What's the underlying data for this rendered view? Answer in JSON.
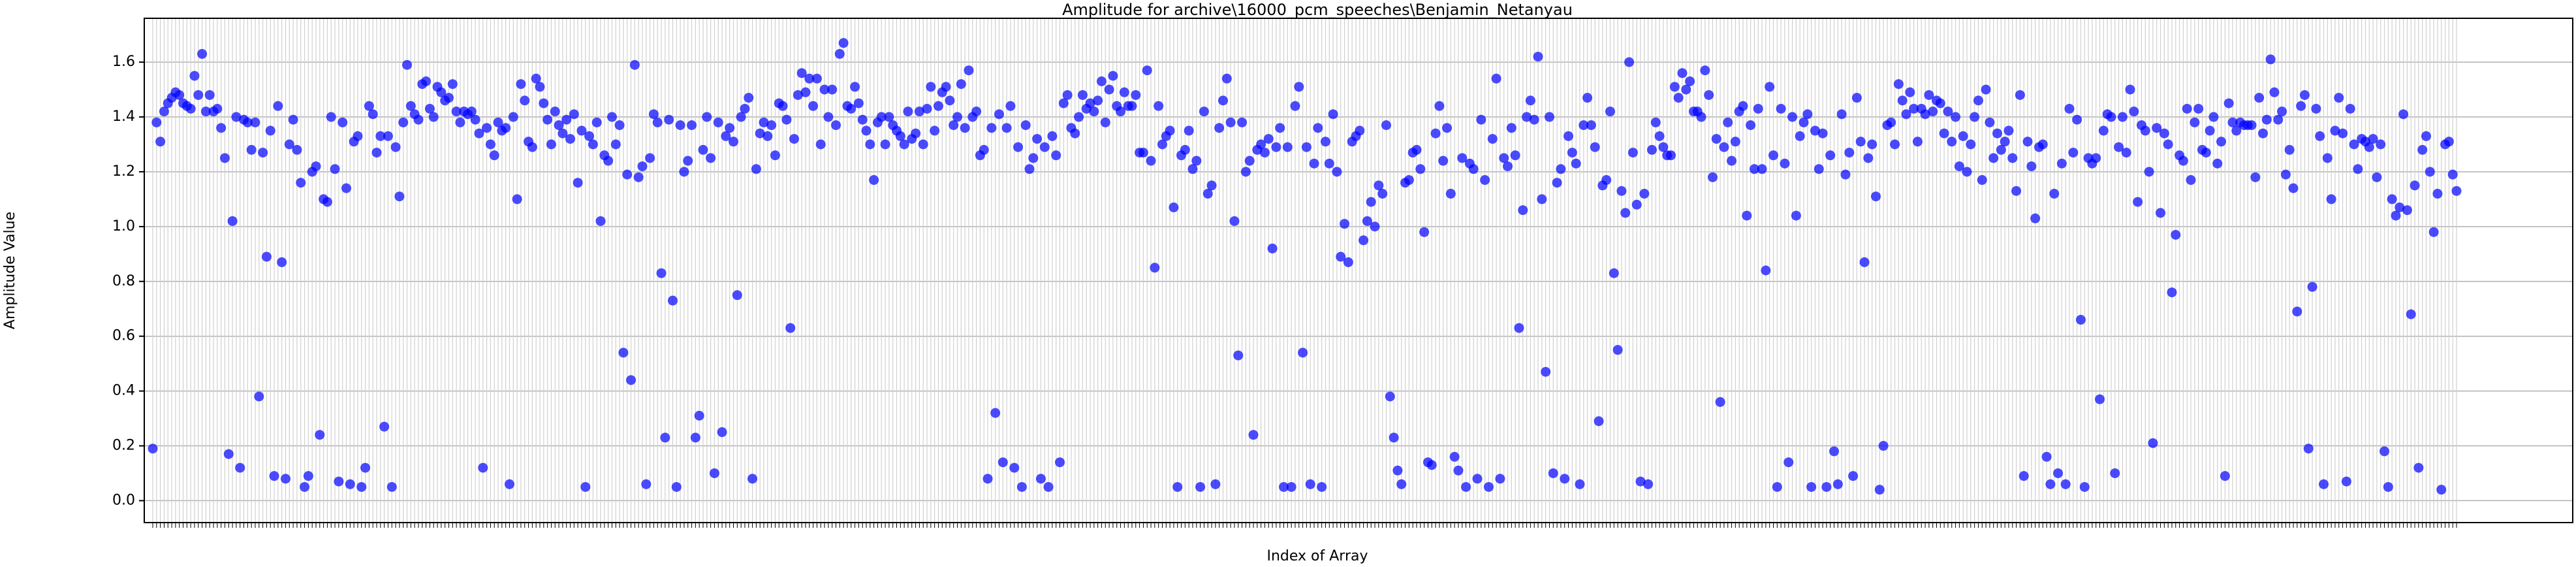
{
  "chart_data": {
    "type": "scatter",
    "title": "Amplitude for archive\\16000_pcm_speeches\\Benjamin_Netanyau",
    "x_label": "Index of Array",
    "y_label": "Amplitude Value",
    "color": "#0000ff",
    "opacity": 0.7,
    "grid": true,
    "ylim": [
      -0.08,
      1.76
    ],
    "yticks": [
      {
        "value": 0,
        "label": "0.0"
      },
      0.2,
      0.4,
      0.6,
      0.8,
      {
        "value": 1,
        "label": "1.0"
      },
      1.2,
      1.4,
      1.6
    ],
    "values": [
      0.19,
      1.38,
      1.31,
      1.42,
      1.45,
      1.47,
      1.49,
      1.48,
      1.45,
      1.44,
      1.43,
      1.55,
      1.48,
      1.63,
      1.42,
      1.48,
      1.42,
      1.43,
      1.36,
      1.25,
      0.17,
      1.02,
      1.4,
      0.12,
      1.39,
      1.38,
      1.28,
      1.38,
      0.38,
      1.27,
      0.89,
      1.35,
      0.09,
      1.44,
      0.87,
      0.08,
      1.3,
      1.39,
      1.28,
      1.16,
      0.05,
      0.09,
      1.2,
      1.22,
      0.24,
      1.1,
      1.09,
      1.4,
      1.21,
      0.07,
      1.38,
      1.14,
      0.06,
      1.31,
      1.33,
      0.05,
      0.12,
      1.44,
      1.41,
      1.27,
      1.33,
      0.27,
      1.33,
      0.05,
      1.29,
      1.11,
      1.38,
      1.59,
      1.44,
      1.41,
      1.39,
      1.52,
      1.53,
      1.43,
      1.4,
      1.51,
      1.49,
      1.46,
      1.47,
      1.52,
      1.42,
      1.38,
      1.42,
      1.41,
      1.42,
      1.39,
      1.34,
      0.12,
      1.36,
      1.3,
      1.26,
      1.38,
      1.35,
      1.36,
      0.06,
      1.4,
      1.1,
      1.52,
      1.46,
      1.31,
      1.29,
      1.54,
      1.51,
      1.45,
      1.39,
      1.3,
      1.42,
      1.37,
      1.34,
      1.39,
      1.32,
      1.41,
      1.16,
      1.35,
      0.05,
      1.33,
      1.3,
      1.38,
      1.02,
      1.26,
      1.24,
      1.4,
      1.3,
      1.37,
      0.54,
      1.19,
      0.44,
      1.59,
      1.18,
      1.22,
      0.06,
      1.25,
      1.41,
      1.38,
      0.83,
      0.23,
      1.39,
      0.73,
      0.05,
      1.37,
      1.2,
      1.24,
      1.37,
      0.23,
      0.31,
      1.28,
      1.4,
      1.25,
      0.1,
      1.38,
      0.25,
      1.33,
      1.36,
      1.31,
      0.75,
      1.4,
      1.43,
      1.47,
      0.08,
      1.21,
      1.34,
      1.38,
      1.33,
      1.37,
      1.26,
      1.45,
      1.44,
      1.39,
      0.63,
      1.32,
      1.48,
      1.56,
      1.49,
      1.54,
      1.44,
      1.54,
      1.3,
      1.5,
      1.4,
      1.5,
      1.37,
      1.63,
      1.67,
      1.44,
      1.43,
      1.51,
      1.45,
      1.39,
      1.35,
      1.3,
      1.17,
      1.38,
      1.4,
      1.3,
      1.4,
      1.37,
      1.35,
      1.33,
      1.3,
      1.42,
      1.32,
      1.34,
      1.42,
      1.3,
      1.43,
      1.51,
      1.35,
      1.44,
      1.49,
      1.51,
      1.46,
      1.37,
      1.4,
      1.52,
      1.36,
      1.57,
      1.4,
      1.42,
      1.26,
      1.28,
      0.08,
      1.36,
      0.32,
      1.41,
      0.14,
      1.36,
      1.44,
      0.12,
      1.29,
      0.05,
      1.37,
      1.21,
      1.25,
      1.32,
      0.08,
      1.29,
      0.05,
      1.33,
      1.26,
      0.14,
      1.45,
      1.48,
      1.36,
      1.34,
      1.4,
      1.48,
      1.43,
      1.45,
      1.42,
      1.46,
      1.53,
      1.38,
      1.5,
      1.55,
      1.44,
      1.42,
      1.49,
      1.44,
      1.44,
      1.48,
      1.27,
      1.27,
      1.57,
      1.24,
      0.85,
      1.44,
      1.3,
      1.33,
      1.35,
      1.07,
      0.05,
      1.26,
      1.28,
      1.35,
      1.21,
      1.24,
      0.05,
      1.42,
      1.12,
      1.15,
      0.06,
      1.36,
      1.46,
      1.54,
      1.38,
      1.02,
      0.53,
      1.38,
      1.2,
      1.24,
      0.24,
      1.28,
      1.3,
      1.27,
      1.32,
      0.92,
      1.29,
      1.36,
      0.05,
      1.29,
      0.05,
      1.44,
      1.51,
      0.54,
      1.29,
      0.06,
      1.23,
      1.36,
      0.05,
      1.31,
      1.23,
      1.41,
      1.2,
      0.89,
      1.01,
      0.87,
      1.31,
      1.33,
      1.35,
      0.95,
      1.02,
      1.09,
      1.0,
      1.15,
      1.12,
      1.37,
      0.38,
      0.23,
      0.11,
      0.06,
      1.16,
      1.17,
      1.27,
      1.28,
      1.21,
      0.98,
      0.14,
      0.13,
      1.34,
      1.44,
      1.24,
      1.36,
      1.12,
      0.16,
      0.11,
      1.25,
      0.05,
      1.23,
      1.21,
      0.08,
      1.39,
      1.17,
      0.05,
      1.32,
      1.54,
      0.08,
      1.25,
      1.22,
      1.36,
      1.26,
      0.63,
      1.06,
      1.4,
      1.46,
      1.39,
      1.62,
      1.1,
      0.47,
      1.4,
      0.1,
      1.16,
      1.21,
      0.08,
      1.33,
      1.27,
      1.23,
      0.06,
      1.37,
      1.47,
      1.37,
      1.29,
      0.29,
      1.15,
      1.17,
      1.42,
      0.83,
      0.55,
      1.13,
      1.05,
      1.6,
      1.27,
      1.08,
      0.07,
      1.12,
      0.06,
      1.28,
      1.38,
      1.33,
      1.29,
      1.26,
      1.26,
      1.51,
      1.47,
      1.56,
      1.5,
      1.53,
      1.42,
      1.42,
      1.4,
      1.57,
      1.48,
      1.18,
      1.32,
      0.36,
      1.29,
      1.38,
      1.24,
      1.31,
      1.42,
      1.44,
      1.04,
      1.37,
      1.21,
      1.43,
      1.21,
      0.84,
      1.51,
      1.26,
      0.05,
      1.43,
      1.23,
      0.14,
      1.4,
      1.04,
      1.33,
      1.38,
      1.41,
      0.05,
      1.35,
      1.21,
      1.34,
      0.05,
      1.26,
      0.18,
      0.06,
      1.41,
      1.19,
      1.27,
      0.09,
      1.47,
      1.31,
      0.87,
      1.25,
      1.3,
      1.11,
      0.04,
      0.2,
      1.37,
      1.38,
      1.3,
      1.52,
      1.46,
      1.41,
      1.49,
      1.43,
      1.31,
      1.43,
      1.41,
      1.48,
      1.42,
      1.46,
      1.45,
      1.34,
      1.42,
      1.31,
      1.4,
      1.22,
      1.33,
      1.2,
      1.3,
      1.4,
      1.46,
      1.17,
      1.5,
      1.38,
      1.25,
      1.34,
      1.28,
      1.31,
      1.35,
      1.25,
      1.13,
      1.48,
      0.09,
      1.31,
      1.22,
      1.03,
      1.29,
      1.3,
      0.16,
      0.06,
      1.12,
      0.1,
      1.23,
      0.06,
      1.43,
      1.27,
      1.39,
      0.66,
      0.05,
      1.25,
      1.23,
      1.25,
      0.37,
      1.35,
      1.41,
      1.4,
      0.1,
      1.29,
      1.4,
      1.27,
      1.5,
      1.42,
      1.09,
      1.37,
      1.35,
      1.2,
      0.21,
      1.36,
      1.05,
      1.34,
      1.3,
      0.76,
      0.97,
      1.26,
      1.24,
      1.43,
      1.17,
      1.38,
      1.43,
      1.28,
      1.27,
      1.35,
      1.4,
      1.23,
      1.31,
      0.09,
      1.45,
      1.38,
      1.35,
      1.38,
      1.37,
      1.37,
      1.37,
      1.18,
      1.47,
      1.34,
      1.39,
      1.61,
      1.49,
      1.39,
      1.42,
      1.19,
      1.28,
      1.14,
      0.69,
      1.44,
      1.48,
      0.19,
      0.78,
      1.43,
      1.33,
      0.06,
      1.25,
      1.1,
      1.35,
      1.47,
      1.34,
      0.07,
      1.43,
      1.3,
      1.21,
      1.32,
      1.31,
      1.29,
      1.32,
      1.18,
      1.3,
      0.18,
      0.05,
      1.1,
      1.04,
      1.07,
      1.41,
      1.06,
      0.68,
      1.15,
      0.12,
      1.28,
      1.33,
      1.2,
      0.98,
      1.12,
      0.04,
      1.3,
      1.31,
      1.19,
      1.13
    ]
  }
}
